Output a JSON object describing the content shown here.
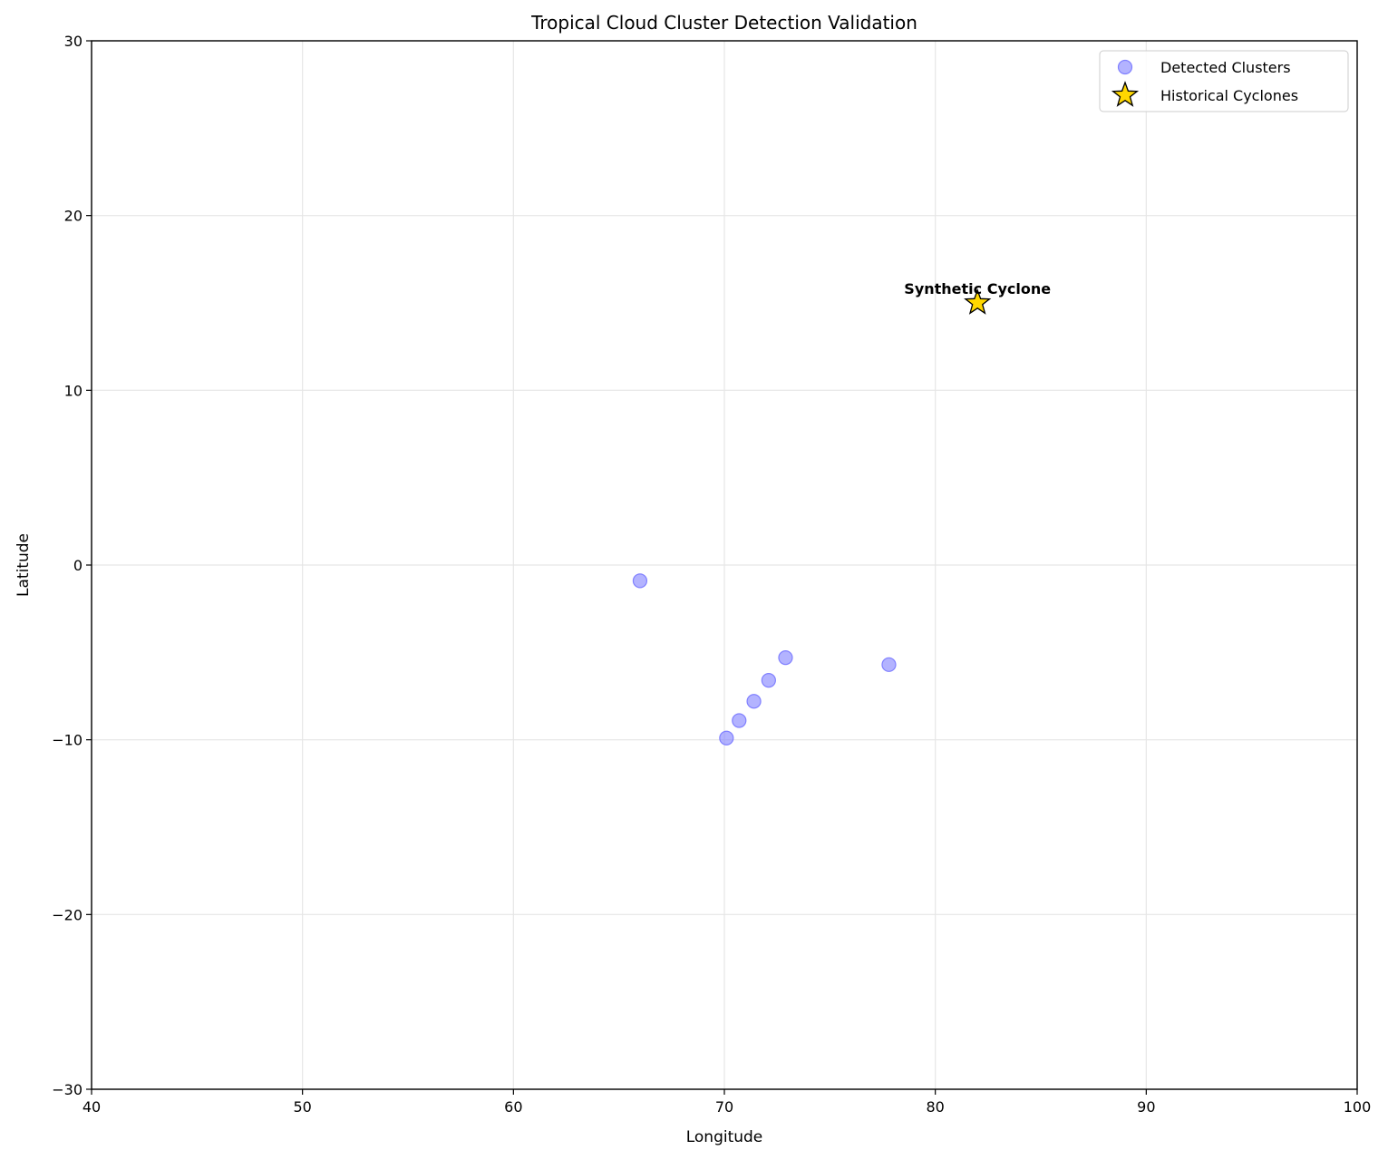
{
  "chart_data": {
    "type": "scatter",
    "title": "Tropical Cloud Cluster Detection Validation",
    "xlabel": "Longitude",
    "ylabel": "Latitude",
    "xlim": [
      40,
      100
    ],
    "ylim": [
      -30,
      30
    ],
    "xticks": [
      40,
      50,
      60,
      70,
      80,
      90,
      100
    ],
    "yticks": [
      -30,
      -20,
      -10,
      0,
      10,
      20,
      30
    ],
    "grid": true,
    "legend_position": "top-right",
    "series": [
      {
        "name": "Detected Clusters",
        "marker": "circle",
        "color": "#8080ff",
        "points": [
          {
            "x": 66.0,
            "y": -0.9
          },
          {
            "x": 70.1,
            "y": -9.9
          },
          {
            "x": 70.7,
            "y": -8.9
          },
          {
            "x": 71.4,
            "y": -7.8
          },
          {
            "x": 72.1,
            "y": -6.6
          },
          {
            "x": 72.9,
            "y": -5.3
          },
          {
            "x": 77.8,
            "y": -5.7
          }
        ]
      },
      {
        "name": "Historical Cyclones",
        "marker": "star",
        "color": "#ffd700",
        "points": [
          {
            "x": 82.0,
            "y": 15.0,
            "label": "Synthetic Cyclone"
          }
        ]
      }
    ]
  }
}
